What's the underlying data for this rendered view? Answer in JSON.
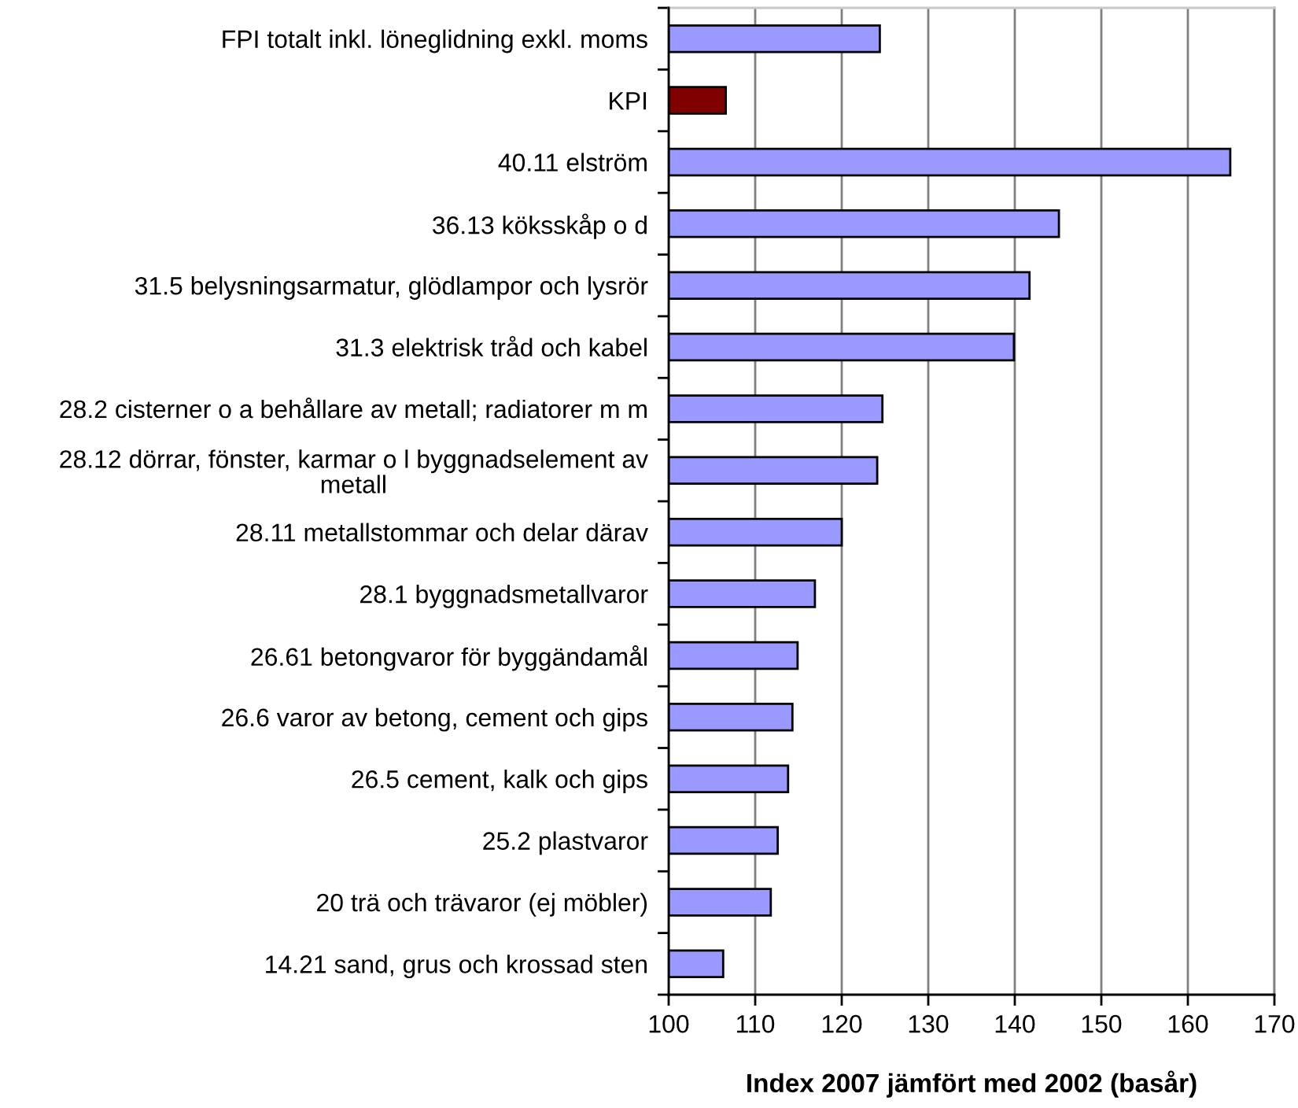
{
  "chart_data": {
    "type": "bar",
    "orientation": "horizontal",
    "xlabel": "Index 2007 jämfört med 2002 (basår)",
    "categories": [
      "FPI totalt inkl. löneglidning exkl. moms",
      "KPI",
      "40.11 elström",
      "36.13 köksskåp o d",
      "31.5 belysningsarmatur, glödlampor och lysrör",
      "31.3 elektrisk tråd och kabel",
      "28.2 cisterner o a behållare av metall; radiatorer m m",
      "28.12 dörrar, fönster, karmar o l byggnadselement av metall",
      "28.11 metallstommar och delar därav",
      "28.1 byggnadsmetallvaror",
      "26.61 betongvaror för byggändamål",
      "26.6 varor av betong, cement och gips",
      "26.5 cement, kalk och gips",
      "25.2 plastvaror",
      "20 trä och trävaror (ej möbler)",
      "14.21 sand, grus och krossad sten"
    ],
    "values": [
      124.4,
      106.6,
      164.9,
      145.1,
      141.7,
      139.9,
      124.7,
      124.1,
      120.0,
      116.9,
      114.9,
      114.3,
      113.8,
      112.6,
      111.8,
      106.3
    ],
    "colors": [
      "#9999ff",
      "#800000",
      "#9999ff",
      "#9999ff",
      "#9999ff",
      "#9999ff",
      "#9999ff",
      "#9999ff",
      "#9999ff",
      "#9999ff",
      "#9999ff",
      "#9999ff",
      "#9999ff",
      "#9999ff",
      "#9999ff",
      "#9999ff"
    ],
    "xlim": [
      100,
      170
    ],
    "xticks": [
      100,
      110,
      120,
      130,
      140,
      150,
      160,
      170
    ],
    "grid": "x"
  }
}
